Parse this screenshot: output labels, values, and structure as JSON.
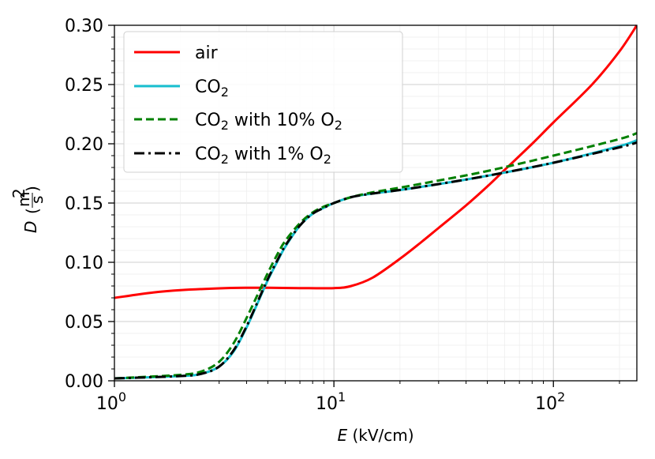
{
  "chart_data": {
    "type": "line",
    "title": "",
    "xscale": "log",
    "xlim": [
      1,
      240
    ],
    "ylim": [
      0,
      0.3
    ],
    "xlabel": {
      "var": "E",
      "unit": " (kV/cm)"
    },
    "ylabel": {
      "var": "D",
      "frac_num": "m",
      "frac_num_sup": "2",
      "frac_den": "s"
    },
    "yticks": [
      {
        "value": 0.0,
        "label": "0.00"
      },
      {
        "value": 0.05,
        "label": "0.05"
      },
      {
        "value": 0.1,
        "label": "0.10"
      },
      {
        "value": 0.15,
        "label": "0.15"
      },
      {
        "value": 0.2,
        "label": "0.20"
      },
      {
        "value": 0.25,
        "label": "0.25"
      },
      {
        "value": 0.3,
        "label": "0.30"
      }
    ],
    "xticks": [
      {
        "value": 1,
        "base": "10",
        "exp": "0"
      },
      {
        "value": 10,
        "base": "10",
        "exp": "1"
      },
      {
        "value": 100,
        "base": "10",
        "exp": "2"
      }
    ],
    "grid": true,
    "legend_position": "top-left",
    "series": [
      {
        "id": "air",
        "label_parts": [
          "air"
        ],
        "color": "#ff0000",
        "dash": "solid",
        "x": [
          1,
          1.5,
          2,
          3,
          4,
          5,
          7,
          10,
          12,
          15,
          20,
          25,
          30,
          40,
          50,
          60,
          80,
          100,
          150,
          200,
          240
        ],
        "y": [
          0.07,
          0.0745,
          0.0765,
          0.078,
          0.0785,
          0.0785,
          0.0782,
          0.0782,
          0.08,
          0.087,
          0.103,
          0.117,
          0.129,
          0.148,
          0.164,
          0.178,
          0.2,
          0.218,
          0.25,
          0.278,
          0.3
        ]
      },
      {
        "id": "co2",
        "label_parts": [
          "CO",
          "2"
        ],
        "color": "#17becf",
        "dash": "solid",
        "x": [
          1,
          2,
          2.5,
          3,
          3.5,
          4,
          4.5,
          5,
          5.5,
          6,
          7,
          8,
          9,
          10,
          12,
          15,
          20,
          30,
          50,
          100,
          200,
          240
        ],
        "y": [
          0.002,
          0.004,
          0.006,
          0.012,
          0.025,
          0.045,
          0.066,
          0.085,
          0.1,
          0.113,
          0.131,
          0.141,
          0.146,
          0.15,
          0.155,
          0.158,
          0.161,
          0.166,
          0.173,
          0.184,
          0.198,
          0.203
        ]
      },
      {
        "id": "co2-10o2",
        "label_parts": [
          "CO",
          "2",
          " with 10% O",
          "2"
        ],
        "color": "#008000",
        "dash": "dashed",
        "x": [
          1,
          2,
          2.5,
          3,
          3.5,
          4,
          4.5,
          5,
          5.5,
          6,
          7,
          8,
          9,
          10,
          12,
          15,
          20,
          30,
          50,
          100,
          200,
          240
        ],
        "y": [
          0.002,
          0.005,
          0.008,
          0.016,
          0.032,
          0.053,
          0.073,
          0.091,
          0.106,
          0.118,
          0.133,
          0.142,
          0.147,
          0.15,
          0.155,
          0.159,
          0.163,
          0.169,
          0.177,
          0.19,
          0.204,
          0.209
        ]
      },
      {
        "id": "co2-1o2",
        "label_parts": [
          "CO",
          "2",
          " with 1% O",
          "2"
        ],
        "color": "#000000",
        "dash": "dashdot",
        "x": [
          1,
          2,
          2.5,
          3,
          3.5,
          4,
          4.5,
          5,
          5.5,
          6,
          7,
          8,
          9,
          10,
          12,
          15,
          20,
          30,
          50,
          100,
          200,
          240
        ],
        "y": [
          0.002,
          0.004,
          0.006,
          0.012,
          0.026,
          0.046,
          0.067,
          0.086,
          0.101,
          0.114,
          0.131,
          0.141,
          0.146,
          0.15,
          0.155,
          0.158,
          0.161,
          0.166,
          0.173,
          0.184,
          0.197,
          0.201
        ]
      }
    ]
  }
}
